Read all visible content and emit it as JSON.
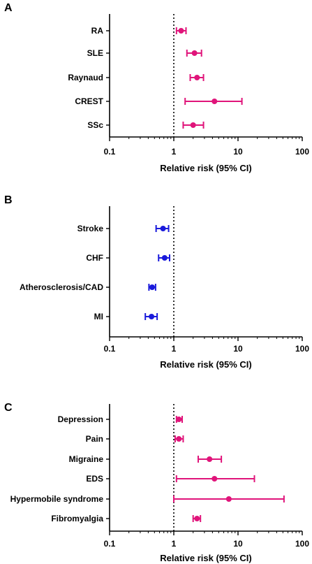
{
  "chart_data": [
    {
      "type": "forest",
      "panel": "A",
      "xlabel": "Relative risk (95% CI)",
      "xscale": "log",
      "xlim": [
        0.1,
        100
      ],
      "xticks": [
        "0.1",
        "1",
        "10",
        "100"
      ],
      "reference_line": 1,
      "color": "#e0147a",
      "categories": [
        "RA",
        "SLE",
        "Raynaud",
        "CREST",
        "SSc"
      ],
      "values": [
        1.3,
        2.1,
        2.3,
        4.3,
        2.0
      ],
      "ci_low": [
        1.1,
        1.6,
        1.8,
        1.5,
        1.4
      ],
      "ci_high": [
        1.55,
        2.7,
        2.9,
        11.5,
        2.9
      ]
    },
    {
      "type": "forest",
      "panel": "B",
      "xlabel": "Relative risk (95% CI)",
      "xscale": "log",
      "xlim": [
        0.1,
        100
      ],
      "xticks": [
        "0.1",
        "1",
        "10",
        "100"
      ],
      "reference_line": 1,
      "color": "#1a1adb",
      "categories": [
        "Stroke",
        "CHF",
        "Atherosclerosis/CAD",
        "MI"
      ],
      "values": [
        0.68,
        0.72,
        0.46,
        0.45
      ],
      "ci_low": [
        0.53,
        0.58,
        0.41,
        0.36
      ],
      "ci_high": [
        0.83,
        0.86,
        0.52,
        0.55
      ]
    },
    {
      "type": "forest",
      "panel": "C",
      "xlabel": "Relative risk (95% CI)",
      "xscale": "log",
      "xlim": [
        0.1,
        100
      ],
      "xticks": [
        "0.1",
        "1",
        "10",
        "100"
      ],
      "reference_line": 1,
      "color": "#e0147a",
      "categories": [
        "Depression",
        "Pain",
        "Migraine",
        "EDS",
        "Hypermobile syndrome",
        "Fibromyalgia"
      ],
      "values": [
        1.2,
        1.2,
        3.6,
        4.3,
        7.2,
        2.3
      ],
      "ci_low": [
        1.1,
        1.05,
        2.4,
        1.1,
        1.0,
        2.0
      ],
      "ci_high": [
        1.35,
        1.4,
        5.5,
        18.0,
        52.0,
        2.6
      ]
    }
  ]
}
